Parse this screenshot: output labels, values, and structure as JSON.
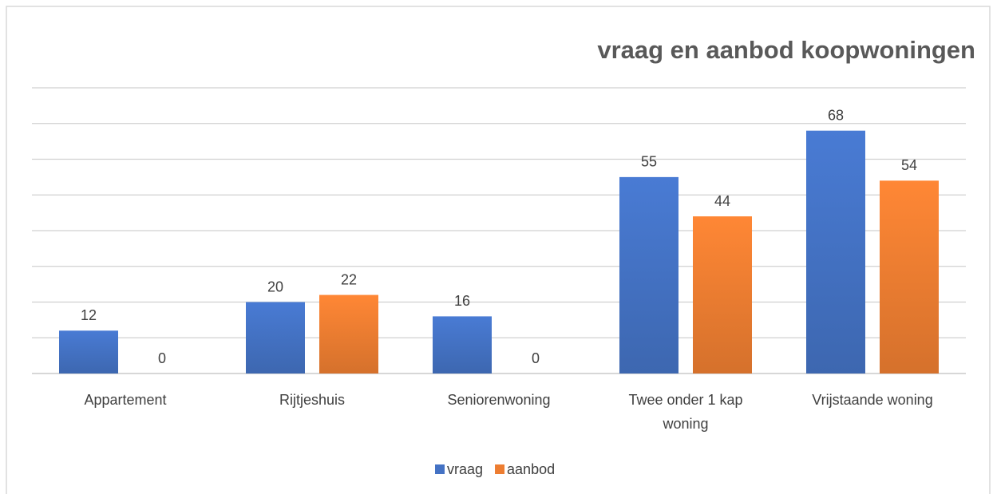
{
  "chart_data": {
    "type": "bar",
    "title": "vraag en aanbod koopwoningen",
    "categories": [
      "Appartement",
      "Rijtjeshuis",
      "Seniorenwoning",
      "Twee onder 1 kap woning",
      "Vrijstaande woning"
    ],
    "series": [
      {
        "name": "vraag",
        "color": "#4472c4",
        "values": [
          12,
          20,
          16,
          55,
          68
        ]
      },
      {
        "name": "aanbod",
        "color": "#ed7d31",
        "values": [
          0,
          22,
          0,
          44,
          54
        ]
      }
    ],
    "ylim": [
      0,
      80
    ],
    "yticks": [
      0,
      10,
      20,
      30,
      40,
      50,
      60,
      70,
      80
    ],
    "grid": true,
    "legend": "bottom"
  }
}
